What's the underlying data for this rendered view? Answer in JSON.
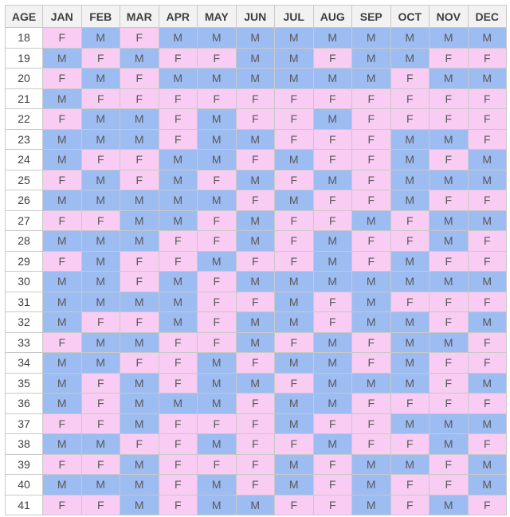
{
  "chart_data": {
    "type": "table",
    "header_age": "AGE",
    "months": [
      "JAN",
      "FEB",
      "MAR",
      "APR",
      "MAY",
      "JUN",
      "JUL",
      "AUG",
      "SEP",
      "OCT",
      "NOV",
      "DEC"
    ],
    "legend": {
      "F": "#f9ccf3",
      "M": "#9cbcf2"
    },
    "rows": [
      {
        "age": "18",
        "values": [
          "F",
          "M",
          "F",
          "M",
          "M",
          "M",
          "M",
          "M",
          "M",
          "M",
          "M",
          "M"
        ]
      },
      {
        "age": "19",
        "values": [
          "M",
          "F",
          "M",
          "F",
          "F",
          "M",
          "M",
          "F",
          "M",
          "M",
          "F",
          "F"
        ]
      },
      {
        "age": "20",
        "values": [
          "F",
          "M",
          "F",
          "M",
          "M",
          "M",
          "M",
          "M",
          "M",
          "F",
          "M",
          "M"
        ]
      },
      {
        "age": "21",
        "values": [
          "M",
          "F",
          "F",
          "F",
          "F",
          "F",
          "F",
          "F",
          "F",
          "F",
          "F",
          "F"
        ]
      },
      {
        "age": "22",
        "values": [
          "F",
          "M",
          "M",
          "F",
          "M",
          "F",
          "F",
          "M",
          "F",
          "F",
          "F",
          "F"
        ]
      },
      {
        "age": "23",
        "values": [
          "M",
          "M",
          "M",
          "F",
          "M",
          "M",
          "F",
          "F",
          "F",
          "M",
          "M",
          "F"
        ]
      },
      {
        "age": "24",
        "values": [
          "M",
          "F",
          "F",
          "M",
          "M",
          "F",
          "M",
          "F",
          "F",
          "M",
          "F",
          "M"
        ]
      },
      {
        "age": "25",
        "values": [
          "F",
          "M",
          "F",
          "M",
          "F",
          "M",
          "F",
          "M",
          "F",
          "M",
          "M",
          "M"
        ]
      },
      {
        "age": "26",
        "values": [
          "M",
          "M",
          "M",
          "M",
          "M",
          "F",
          "M",
          "F",
          "F",
          "M",
          "F",
          "F"
        ]
      },
      {
        "age": "27",
        "values": [
          "F",
          "F",
          "M",
          "M",
          "F",
          "M",
          "F",
          "F",
          "M",
          "F",
          "M",
          "M"
        ]
      },
      {
        "age": "28",
        "values": [
          "M",
          "M",
          "M",
          "F",
          "F",
          "M",
          "F",
          "M",
          "F",
          "F",
          "M",
          "F"
        ]
      },
      {
        "age": "29",
        "values": [
          "F",
          "M",
          "F",
          "F",
          "M",
          "F",
          "F",
          "M",
          "F",
          "M",
          "F",
          "F"
        ]
      },
      {
        "age": "30",
        "values": [
          "M",
          "M",
          "F",
          "M",
          "F",
          "M",
          "M",
          "M",
          "M",
          "M",
          "M",
          "M"
        ]
      },
      {
        "age": "31",
        "values": [
          "M",
          "M",
          "M",
          "M",
          "F",
          "F",
          "M",
          "F",
          "M",
          "F",
          "F",
          "F"
        ]
      },
      {
        "age": "32",
        "values": [
          "M",
          "F",
          "F",
          "M",
          "F",
          "M",
          "M",
          "F",
          "M",
          "M",
          "F",
          "M"
        ]
      },
      {
        "age": "33",
        "values": [
          "F",
          "M",
          "M",
          "F",
          "F",
          "M",
          "F",
          "M",
          "F",
          "M",
          "M",
          "F"
        ]
      },
      {
        "age": "34",
        "values": [
          "M",
          "M",
          "F",
          "F",
          "M",
          "F",
          "M",
          "M",
          "F",
          "M",
          "F",
          "F"
        ]
      },
      {
        "age": "35",
        "values": [
          "M",
          "F",
          "M",
          "F",
          "M",
          "M",
          "F",
          "M",
          "M",
          "M",
          "F",
          "M"
        ]
      },
      {
        "age": "36",
        "values": [
          "M",
          "F",
          "M",
          "M",
          "M",
          "F",
          "M",
          "M",
          "F",
          "F",
          "F",
          "F"
        ]
      },
      {
        "age": "37",
        "values": [
          "F",
          "F",
          "M",
          "F",
          "F",
          "F",
          "M",
          "F",
          "F",
          "M",
          "M",
          "M"
        ]
      },
      {
        "age": "38",
        "values": [
          "M",
          "M",
          "F",
          "F",
          "M",
          "F",
          "F",
          "M",
          "F",
          "F",
          "M",
          "F"
        ]
      },
      {
        "age": "39",
        "values": [
          "F",
          "F",
          "M",
          "F",
          "F",
          "F",
          "M",
          "F",
          "M",
          "M",
          "F",
          "M"
        ]
      },
      {
        "age": "40",
        "values": [
          "M",
          "M",
          "M",
          "F",
          "M",
          "F",
          "M",
          "F",
          "M",
          "F",
          "F",
          "M"
        ]
      },
      {
        "age": "41",
        "values": [
          "F",
          "F",
          "M",
          "F",
          "M",
          "M",
          "F",
          "F",
          "M",
          "F",
          "M",
          "F"
        ]
      }
    ]
  }
}
